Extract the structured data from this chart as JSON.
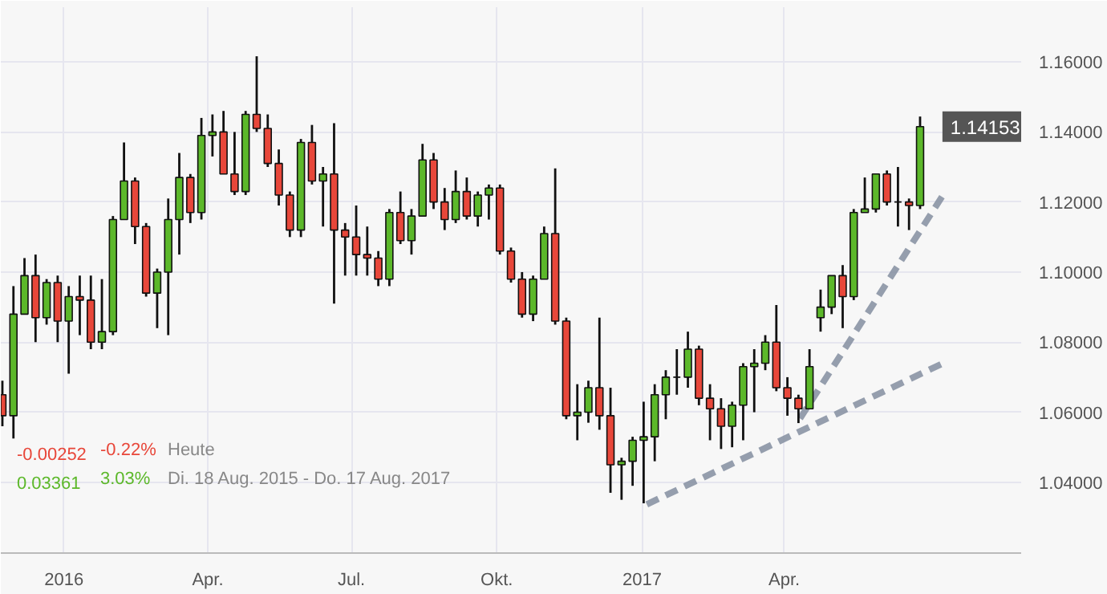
{
  "chart_data": {
    "type": "candlestick",
    "x": [
      "2015-11-23",
      "2015-11-30",
      "2015-12-07",
      "2015-12-14",
      "2015-12-21",
      "2015-12-28",
      "2016-01-04",
      "2016-01-11",
      "2016-01-18",
      "2016-01-25",
      "2016-02-01",
      "2016-02-08",
      "2016-02-15",
      "2016-02-22",
      "2016-02-29",
      "2016-03-07",
      "2016-03-14",
      "2016-03-21",
      "2016-03-28",
      "2016-04-04",
      "2016-04-11",
      "2016-04-18",
      "2016-04-25",
      "2016-05-02",
      "2016-05-09",
      "2016-05-16",
      "2016-05-23",
      "2016-05-30",
      "2016-06-06",
      "2016-06-13",
      "2016-06-20",
      "2016-06-27",
      "2016-07-04",
      "2016-07-11",
      "2016-07-18",
      "2016-07-25",
      "2016-08-01",
      "2016-08-08",
      "2016-08-15",
      "2016-08-22",
      "2016-08-29",
      "2016-09-05",
      "2016-09-12",
      "2016-09-19",
      "2016-09-26",
      "2016-10-03",
      "2016-10-10",
      "2016-10-17",
      "2016-10-24",
      "2016-10-31",
      "2016-11-07",
      "2016-11-14",
      "2016-11-21",
      "2016-11-28",
      "2016-12-05",
      "2016-12-12",
      "2016-12-19",
      "2016-12-26",
      "2017-01-02",
      "2017-01-09",
      "2017-01-16",
      "2017-01-23",
      "2017-01-30",
      "2017-02-06",
      "2017-02-13",
      "2017-02-20",
      "2017-02-27",
      "2017-03-06",
      "2017-03-13",
      "2017-03-20",
      "2017-03-27",
      "2017-04-03",
      "2017-04-10",
      "2017-04-17",
      "2017-04-24",
      "2017-05-01",
      "2017-05-08",
      "2017-05-15",
      "2017-05-22",
      "2017-05-29",
      "2017-06-05",
      "2017-06-12",
      "2017-06-19",
      "2017-06-26"
    ],
    "ohlc": [
      [
        1.065,
        1.069,
        1.056,
        1.059
      ],
      [
        1.059,
        1.096,
        1.0525,
        1.088
      ],
      [
        1.088,
        1.104,
        1.088,
        1.099
      ],
      [
        1.099,
        1.105,
        1.08,
        1.087
      ],
      [
        1.087,
        1.098,
        1.085,
        1.097
      ],
      [
        1.097,
        1.099,
        1.08,
        1.086
      ],
      [
        1.086,
        1.096,
        1.071,
        1.093
      ],
      [
        1.093,
        1.099,
        1.082,
        1.092
      ],
      [
        1.092,
        1.099,
        1.078,
        1.08
      ],
      [
        1.08,
        1.098,
        1.078,
        1.083
      ],
      [
        1.083,
        1.116,
        1.082,
        1.115
      ],
      [
        1.115,
        1.137,
        1.115,
        1.126
      ],
      [
        1.126,
        1.127,
        1.108,
        1.113
      ],
      [
        1.113,
        1.114,
        1.093,
        1.094
      ],
      [
        1.094,
        1.101,
        1.084,
        1.1
      ],
      [
        1.1,
        1.121,
        1.082,
        1.115
      ],
      [
        1.115,
        1.134,
        1.105,
        1.127
      ],
      [
        1.127,
        1.128,
        1.114,
        1.117
      ],
      [
        1.117,
        1.144,
        1.115,
        1.139
      ],
      [
        1.139,
        1.145,
        1.133,
        1.14
      ],
      [
        1.14,
        1.146,
        1.128,
        1.128
      ],
      [
        1.128,
        1.14,
        1.122,
        1.123
      ],
      [
        1.123,
        1.146,
        1.122,
        1.145
      ],
      [
        1.145,
        1.1616,
        1.14,
        1.141
      ],
      [
        1.141,
        1.145,
        1.13,
        1.131
      ],
      [
        1.131,
        1.135,
        1.119,
        1.122
      ],
      [
        1.122,
        1.123,
        1.11,
        1.112
      ],
      [
        1.112,
        1.138,
        1.11,
        1.137
      ],
      [
        1.137,
        1.142,
        1.125,
        1.126
      ],
      [
        1.126,
        1.13,
        1.113,
        1.128
      ],
      [
        1.128,
        1.1425,
        1.091,
        1.112
      ],
      [
        1.112,
        1.114,
        1.099,
        1.11
      ],
      [
        1.11,
        1.119,
        1.099,
        1.105
      ],
      [
        1.105,
        1.113,
        1.099,
        1.104
      ],
      [
        1.104,
        1.106,
        1.096,
        1.098
      ],
      [
        1.098,
        1.118,
        1.096,
        1.117
      ],
      [
        1.117,
        1.123,
        1.108,
        1.109
      ],
      [
        1.109,
        1.118,
        1.105,
        1.116
      ],
      [
        1.116,
        1.1366,
        1.116,
        1.132
      ],
      [
        1.132,
        1.134,
        1.118,
        1.12
      ],
      [
        1.12,
        1.124,
        1.112,
        1.115
      ],
      [
        1.115,
        1.129,
        1.114,
        1.123
      ],
      [
        1.123,
        1.127,
        1.115,
        1.116
      ],
      [
        1.116,
        1.123,
        1.113,
        1.122
      ],
      [
        1.122,
        1.125,
        1.115,
        1.124
      ],
      [
        1.124,
        1.125,
        1.105,
        1.106
      ],
      [
        1.106,
        1.107,
        1.097,
        1.098
      ],
      [
        1.098,
        1.1,
        1.087,
        1.088
      ],
      [
        1.088,
        1.099,
        1.086,
        1.098
      ],
      [
        1.098,
        1.113,
        1.098,
        1.111
      ],
      [
        1.111,
        1.1296,
        1.085,
        1.086
      ],
      [
        1.086,
        1.087,
        1.058,
        1.059
      ],
      [
        1.059,
        1.068,
        1.052,
        1.06
      ],
      [
        1.06,
        1.069,
        1.057,
        1.067
      ],
      [
        1.067,
        1.087,
        1.055,
        1.059
      ],
      [
        1.059,
        1.067,
        1.037,
        1.045
      ],
      [
        1.045,
        1.047,
        1.035,
        1.046
      ],
      [
        1.046,
        1.053,
        1.039,
        1.052
      ],
      [
        1.052,
        1.063,
        1.034,
        1.053
      ],
      [
        1.053,
        1.068,
        1.046,
        1.065
      ],
      [
        1.065,
        1.072,
        1.058,
        1.07
      ],
      [
        1.07,
        1.078,
        1.065,
        1.07
      ],
      [
        1.07,
        1.083,
        1.067,
        1.078
      ],
      [
        1.078,
        1.079,
        1.062,
        1.064
      ],
      [
        1.064,
        1.068,
        1.052,
        1.061
      ],
      [
        1.061,
        1.064,
        1.0495,
        1.056
      ],
      [
        1.056,
        1.063,
        1.05,
        1.062
      ],
      [
        1.062,
        1.074,
        1.052,
        1.073
      ],
      [
        1.073,
        1.078,
        1.06,
        1.074
      ],
      [
        1.074,
        1.082,
        1.072,
        1.08
      ],
      [
        1.08,
        1.0906,
        1.066,
        1.067
      ],
      [
        1.067,
        1.07,
        1.059,
        1.064
      ],
      [
        1.064,
        1.065,
        1.0569,
        1.061
      ],
      [
        1.061,
        1.078,
        1.061,
        1.073
      ],
      [
        1.087,
        1.095,
        1.083,
        1.09
      ],
      [
        1.09,
        1.099,
        1.088,
        1.099
      ],
      [
        1.099,
        1.102,
        1.084,
        1.093
      ],
      [
        1.093,
        1.118,
        1.092,
        1.117
      ],
      [
        1.117,
        1.127,
        1.117,
        1.118
      ],
      [
        1.118,
        1.128,
        1.117,
        1.128
      ],
      [
        1.128,
        1.129,
        1.119,
        1.12
      ],
      [
        1.12,
        1.13,
        1.113,
        1.12
      ],
      [
        1.12,
        1.121,
        1.112,
        1.119
      ],
      [
        1.119,
        1.1444,
        1.118,
        1.14153
      ]
    ],
    "series": [
      {
        "type": "line",
        "x": [
          "2017-01-04",
          "2017-07-12"
        ],
        "values": [
          1.0337,
          1.0743
        ],
        "color": "#8a94a4",
        "line_style": "dashed"
      },
      {
        "type": "line",
        "x": [
          "2017-04-11",
          "2017-07-12"
        ],
        "values": [
          1.0582,
          1.123
        ],
        "color": "#8a94a4",
        "line_style": "dashed"
      }
    ],
    "xlim": [
      "2015-11-22",
      "2017-08-29"
    ],
    "xticks": [
      {
        "value": "2016-01-01",
        "label": "2016"
      },
      {
        "value": "2016-04-01",
        "label": "Apr."
      },
      {
        "value": "2016-07-01",
        "label": "Jul."
      },
      {
        "value": "2016-10-01",
        "label": "Okt."
      },
      {
        "value": "2017-01-01",
        "label": "2017"
      },
      {
        "value": "2017-04-01",
        "label": "Apr."
      }
    ],
    "ylim": [
      1.0198,
      1.1756
    ],
    "yticks": [
      {
        "value": 1.04,
        "label": "1.04000"
      },
      {
        "value": 1.06,
        "label": "1.06000"
      },
      {
        "value": 1.08,
        "label": "1.08000"
      },
      {
        "value": 1.1,
        "label": "1.10000"
      },
      {
        "value": 1.12,
        "label": "1.12000"
      },
      {
        "value": 1.14,
        "label": "1.14000"
      },
      {
        "value": 1.16,
        "label": "1.16000"
      }
    ],
    "grid": true,
    "annotations": [
      "-0.00252",
      "-0.22%",
      "Heute",
      "0.03361",
      "3.03%",
      "Di. 18 Aug. 2015 - Do. 17 Aug. 2017",
      {
        "text": "1.14153",
        "x": "2017-06-30",
        "y": 1.14153
      }
    ]
  }
}
